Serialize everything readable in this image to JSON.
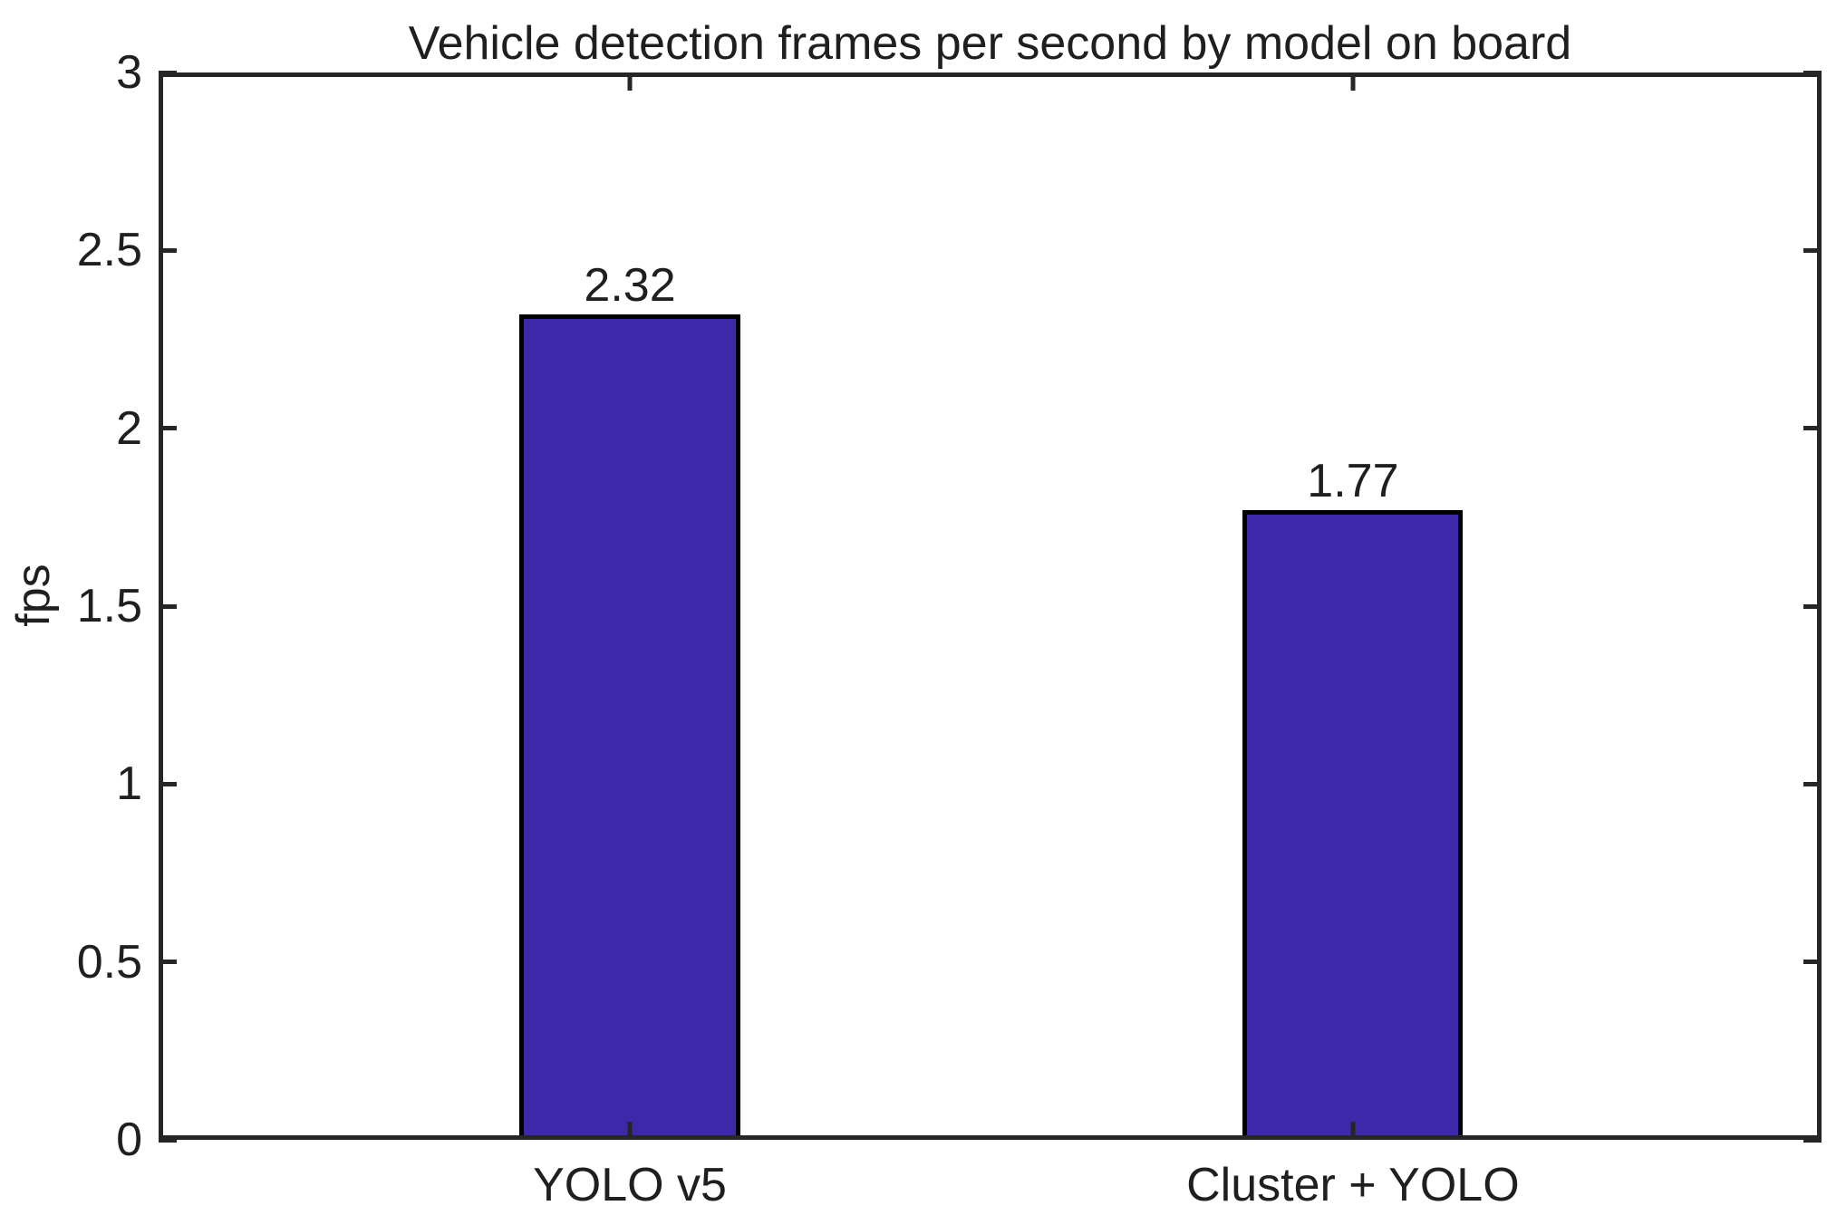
{
  "chart_data": {
    "type": "bar",
    "title": "Vehicle detection frames per second by model on board",
    "xlabel": "",
    "ylabel": "fps",
    "categories": [
      "YOLO v5",
      "Cluster + YOLO"
    ],
    "values": [
      2.32,
      1.77
    ],
    "value_labels": [
      "2.32",
      "1.77"
    ],
    "ylim": [
      0,
      3
    ],
    "yticks": [
      0,
      0.5,
      1,
      1.5,
      2,
      2.5,
      3
    ],
    "ytick_labels": [
      "0",
      "0.5",
      "1",
      "1.5",
      "2",
      "2.5",
      "3"
    ],
    "grid": false,
    "legend_position": "none",
    "bar_color": "#3C28A8",
    "bar_edge_color": "#000000",
    "axis_color": "#262626",
    "text_color": "#1f1f1f"
  }
}
